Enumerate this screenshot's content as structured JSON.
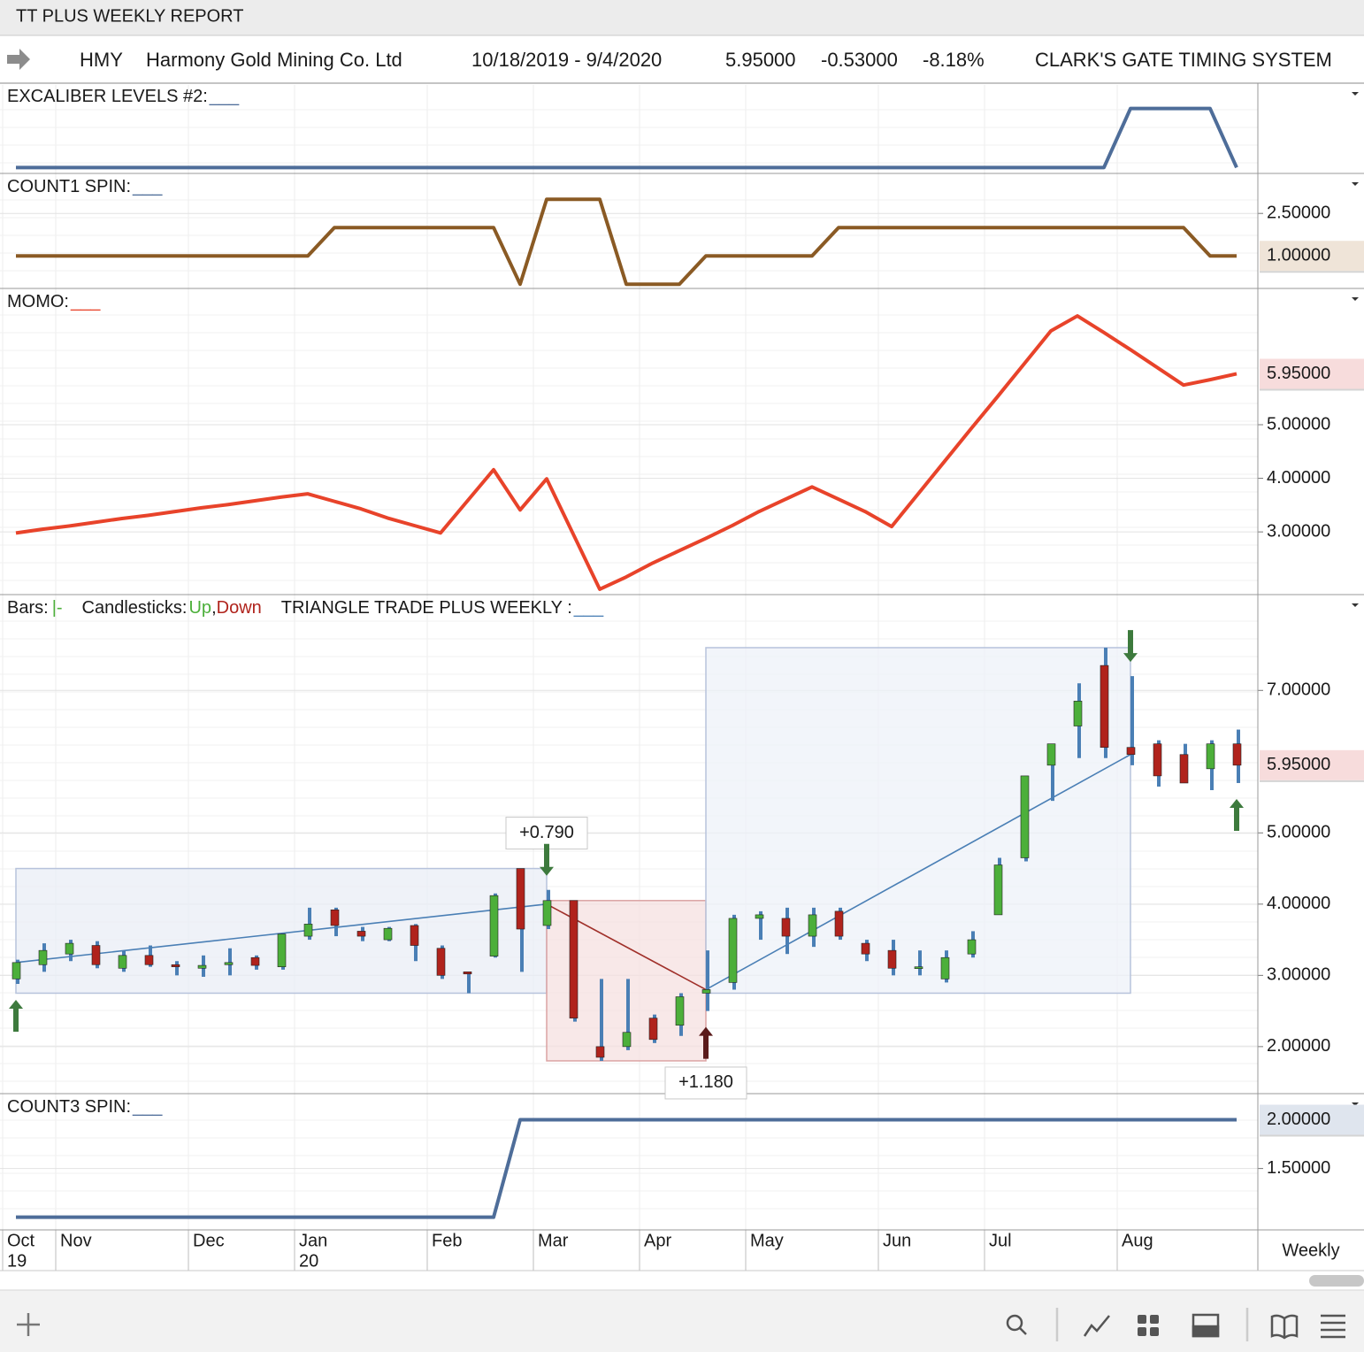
{
  "header": {
    "title": "TT PLUS WEEKLY REPORT",
    "symbol": "HMY",
    "name": "Harmony Gold Mining Co. Ltd",
    "range": "10/18/2019 - 9/4/2020",
    "last": "5.95000",
    "change": "-0.53000",
    "change_pct": "-8.18%",
    "system": "CLARK'S GATE TIMING SYSTEM"
  },
  "chart_data": [
    {
      "type": "line",
      "title": "EXCALIBER LEVELS #2:",
      "key": "___",
      "key_color": "#4e6d99",
      "color": "#4e6d99",
      "values": [
        0,
        0,
        0,
        0,
        0,
        0,
        0,
        0,
        0,
        0,
        0,
        0,
        0,
        0,
        0,
        0,
        0,
        0,
        0,
        0,
        0,
        0,
        0,
        0,
        0,
        0,
        0,
        0,
        0,
        0,
        0,
        0,
        0,
        0,
        0,
        0,
        0,
        0,
        0,
        0,
        0,
        0,
        1,
        1,
        1,
        1,
        0
      ],
      "ylim": [
        -0.1,
        1.4
      ],
      "yticks": []
    },
    {
      "type": "line",
      "title": "COUNT1 SPIN:",
      "key": "___",
      "key_color": "#4e6d99",
      "color": "#8a5a24",
      "values": [
        1,
        1,
        1,
        1,
        1,
        1,
        1,
        1,
        1,
        1,
        1,
        1,
        2,
        2,
        2,
        2,
        2,
        2,
        2,
        0,
        3,
        3,
        3,
        0,
        0,
        0,
        1,
        1,
        1,
        1,
        1,
        2,
        2,
        2,
        2,
        2,
        2,
        2,
        2,
        2,
        2,
        2,
        2,
        2,
        2,
        1,
        1
      ],
      "ylim": [
        -0.15,
        3.85
      ],
      "yticks": [
        {
          "value": 2.5,
          "label": "2.50000"
        }
      ],
      "current_label": "1.00000",
      "current_bg": "#efe4d8",
      "current_color": "#6b4a22"
    },
    {
      "type": "line",
      "title": "MOMO:",
      "key": "___",
      "key_color": "#e8432a",
      "color": "#e8432a",
      "values": [
        2.98,
        3.05,
        3.11,
        3.18,
        3.25,
        3.31,
        3.38,
        3.45,
        3.51,
        3.58,
        3.65,
        3.71,
        3.57,
        3.43,
        3.26,
        3.12,
        2.98,
        3.57,
        4.16,
        3.41,
        3.99,
        2.96,
        1.93,
        2.16,
        2.42,
        2.65,
        2.88,
        3.12,
        3.38,
        3.61,
        3.84,
        3.61,
        3.38,
        3.1,
        3.71,
        4.32,
        4.93,
        5.53,
        6.14,
        6.75,
        7.03,
        6.72,
        6.4,
        6.07,
        5.74,
        5.84,
        5.95
      ],
      "ylim": [
        1.83,
        7.51
      ],
      "yticks": [
        {
          "value": 3,
          "label": "3.00000"
        },
        {
          "value": 4,
          "label": "4.00000"
        },
        {
          "value": 5,
          "label": "5.00000"
        }
      ],
      "current_label": "5.95000",
      "current_bg": "#f7dcdc",
      "current_color": "#a8302a"
    },
    {
      "type": "candlestick",
      "title": "Bars:",
      "bars_key": "|-",
      "candles_label": "Candlesticks:",
      "up_label": "Up",
      "separator": ",",
      "down_label": "Down",
      "indicator": "TRIANGLE TRADE PLUS WEEKLY :",
      "key": "___",
      "key_color": "#4a7fb5",
      "up_color": "#4caf3a",
      "down_color": "#b0231c",
      "bar_color": "#4a7fb5",
      "open": [
        2.95,
        3.15,
        3.3,
        3.42,
        3.1,
        3.28,
        3.15,
        3.1,
        3.15,
        3.25,
        3.12,
        3.55,
        3.92,
        3.62,
        3.5,
        3.7,
        3.38,
        3.05,
        3.27,
        4.5,
        3.7,
        4.05,
        2.0,
        2.0,
        2.4,
        2.3,
        2.75,
        2.9,
        3.8,
        3.8,
        3.55,
        3.9,
        3.45,
        3.35,
        3.1,
        2.95,
        3.3,
        3.85,
        4.65,
        5.95,
        6.5,
        7.35,
        6.2,
        6.25,
        6.1,
        5.9,
        6.25
      ],
      "high": [
        3.22,
        3.45,
        3.5,
        3.48,
        3.35,
        3.42,
        3.2,
        3.28,
        3.38,
        3.28,
        3.6,
        3.95,
        3.95,
        3.68,
        3.68,
        3.72,
        3.42,
        3.05,
        4.15,
        4.5,
        4.2,
        4.05,
        2.95,
        2.95,
        2.45,
        2.75,
        3.35,
        3.85,
        3.9,
        3.95,
        3.95,
        3.95,
        3.5,
        3.5,
        3.35,
        3.35,
        3.62,
        4.65,
        5.8,
        6.25,
        7.1,
        7.6,
        7.2,
        6.3,
        6.25,
        6.3,
        6.45
      ],
      "low": [
        2.88,
        3.05,
        3.2,
        3.1,
        3.05,
        3.12,
        3.0,
        2.98,
        3.0,
        3.08,
        3.08,
        3.5,
        3.55,
        3.48,
        3.48,
        3.2,
        2.95,
        2.75,
        3.25,
        3.05,
        3.65,
        2.35,
        1.8,
        1.95,
        2.05,
        2.15,
        2.5,
        2.8,
        3.5,
        3.3,
        3.4,
        3.5,
        3.2,
        3.0,
        3.0,
        2.9,
        3.25,
        3.85,
        4.6,
        5.45,
        6.05,
        6.05,
        5.95,
        5.65,
        5.7,
        5.6,
        5.7
      ],
      "close": [
        3.18,
        3.35,
        3.45,
        3.15,
        3.28,
        3.15,
        3.12,
        3.14,
        3.18,
        3.14,
        3.58,
        3.72,
        3.7,
        3.55,
        3.66,
        3.42,
        3.0,
        3.02,
        4.12,
        3.65,
        4.05,
        2.4,
        1.85,
        2.2,
        2.1,
        2.7,
        2.8,
        3.8,
        3.85,
        3.55,
        3.85,
        3.55,
        3.3,
        3.1,
        3.12,
        3.25,
        3.5,
        4.55,
        5.8,
        6.25,
        6.85,
        6.2,
        6.1,
        5.8,
        5.7,
        6.25,
        5.95
      ],
      "ylim": [
        1.34,
        8.32
      ],
      "yticks": [
        {
          "value": 2,
          "label": "2.00000"
        },
        {
          "value": 3,
          "label": "3.00000"
        },
        {
          "value": 4,
          "label": "4.00000"
        },
        {
          "value": 5,
          "label": "5.00000"
        },
        {
          "value": 7,
          "label": "7.00000"
        }
      ],
      "current_label": "5.95000",
      "current_bg": "#f7dcdc",
      "current_color": "#a8302a",
      "boxes": [
        {
          "from": 0,
          "to": 20,
          "low": 2.75,
          "high": 4.5,
          "fill": "#e9edf6",
          "stroke": "#b7c3dc",
          "label": "+0.790",
          "label_color": "#3f8f3f",
          "label_side": "top"
        },
        {
          "from": 20,
          "to": 26,
          "low": 1.8,
          "high": 4.05,
          "fill": "#f6e0e0",
          "stroke": "#dba3a3",
          "label": "+1.180",
          "label_color": "#8b1a1a",
          "label_side": "bottom"
        },
        {
          "from": 26,
          "to": 42,
          "low": 2.75,
          "high": 7.6,
          "fill": "#eef1f8",
          "stroke": "#b7c3dc"
        }
      ],
      "trendlines": [
        {
          "from": [
            0,
            3.18
          ],
          "to": [
            20,
            4.0
          ],
          "color": "#4a7fb5"
        },
        {
          "from": [
            20,
            4.0
          ],
          "to": [
            26,
            2.8
          ],
          "color": "#a0302a"
        },
        {
          "from": [
            26,
            2.8
          ],
          "to": [
            42,
            6.1
          ],
          "color": "#4a7fb5"
        }
      ],
      "arrows": [
        {
          "index": 0,
          "dir": "up",
          "color": "#3d7a3d"
        },
        {
          "index": 20,
          "dir": "down",
          "color": "#3d7a3d"
        },
        {
          "index": 26,
          "dir": "up",
          "color": "#5a1a1a"
        },
        {
          "index": 42,
          "dir": "down",
          "color": "#3d7a3d"
        },
        {
          "index": 46,
          "dir": "up",
          "color": "#3d7a3d"
        }
      ]
    },
    {
      "type": "line",
      "title": "COUNT3 SPIN:",
      "key": "___",
      "key_color": "#4e6d99",
      "color": "#4e6d99",
      "values": [
        1,
        1,
        1,
        1,
        1,
        1,
        1,
        1,
        1,
        1,
        1,
        1,
        1,
        1,
        1,
        1,
        1,
        1,
        1,
        2,
        2,
        2,
        2,
        2,
        2,
        2,
        2,
        2,
        2,
        2,
        2,
        2,
        2,
        2,
        2,
        2,
        2,
        2,
        2,
        2,
        2,
        2,
        2,
        2,
        2,
        2,
        2
      ],
      "ylim": [
        0.87,
        2.25
      ],
      "yticks": [
        {
          "value": 1.5,
          "label": "1.50000"
        }
      ],
      "current_label": "2.00000",
      "current_bg": "#dfe5ee",
      "current_color": "#34507a"
    }
  ],
  "time_axis": {
    "xticks": [
      {
        "value": -0.5,
        "label": "Oct"
      },
      {
        "value": 1.5,
        "label": "Nov"
      },
      {
        "value": 6.5,
        "label": "Dec"
      },
      {
        "value": 10.5,
        "label": "Jan"
      },
      {
        "value": 15.5,
        "label": "Feb"
      },
      {
        "value": 19.5,
        "label": "Mar"
      },
      {
        "value": 23.5,
        "label": "Apr"
      },
      {
        "value": 27.5,
        "label": "May"
      },
      {
        "value": 32.5,
        "label": "Jun"
      },
      {
        "value": 36.5,
        "label": "Jul"
      },
      {
        "value": 41.5,
        "label": "Aug"
      }
    ],
    "year_labels": [
      {
        "value": -0.5,
        "label": "19"
      },
      {
        "value": 10.5,
        "label": "20"
      }
    ],
    "period": "Weekly"
  }
}
